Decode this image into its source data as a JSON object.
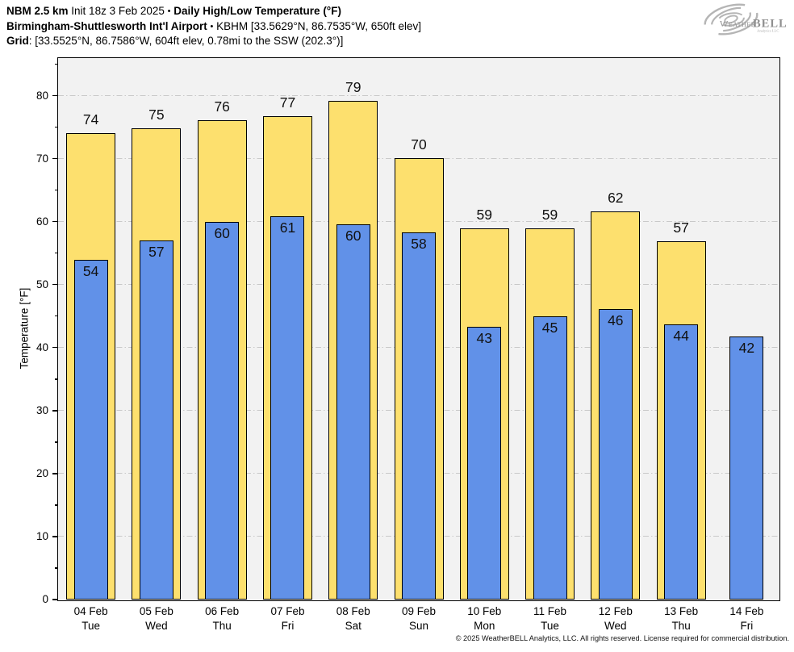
{
  "header": {
    "line1": {
      "model": "NBM 2.5 km",
      "init": "Init 18z 3 Feb 2025",
      "sep": "•",
      "title": "Daily High/Low Temperature (°F)"
    },
    "line2": {
      "station": "Birmingham-Shuttlesworth Int'l Airport",
      "sep": "•",
      "details": "KBHM [33.5629°N, 86.7535°W, 650ft elev]"
    },
    "line3": {
      "label": "Grid",
      "details": ": [33.5525°N, 86.7586°W, 604ft elev, 0.78mi to the SSW (202.3°)]"
    }
  },
  "logo": {
    "brand_weather": "Weather",
    "brand_bell": "BELL",
    "subtext": "Analytics LLC"
  },
  "footer": {
    "copyright": "© 2025 WeatherBELL Analytics, LLC. All rights reserved. License required for commercial distribution."
  },
  "colors": {
    "high_fill": "#FDE06E",
    "low_fill": "#6191E8",
    "bar_edge": "#000000",
    "plot_bg": "#F2F2F2",
    "gridline": "#C9C9C9",
    "logo_gray": "#9B9B9B"
  },
  "chart_data": {
    "type": "bar",
    "title": "Daily High/Low Temperature (°F)",
    "ylabel": "Temperature [°F]",
    "ylim": [
      0,
      86
    ],
    "yticks": [
      0,
      10,
      20,
      30,
      40,
      50,
      60,
      70,
      80
    ],
    "grid": "horizontal dash-dot, behind bars",
    "legend": "none",
    "categories": [
      {
        "date": "04 Feb",
        "day": "Tue"
      },
      {
        "date": "05 Feb",
        "day": "Wed"
      },
      {
        "date": "06 Feb",
        "day": "Thu"
      },
      {
        "date": "07 Feb",
        "day": "Fri"
      },
      {
        "date": "08 Feb",
        "day": "Sat"
      },
      {
        "date": "09 Feb",
        "day": "Sun"
      },
      {
        "date": "10 Feb",
        "day": "Mon"
      },
      {
        "date": "11 Feb",
        "day": "Tue"
      },
      {
        "date": "12 Feb",
        "day": "Wed"
      },
      {
        "date": "13 Feb",
        "day": "Thu"
      },
      {
        "date": "14 Feb",
        "day": "Fri"
      }
    ],
    "series": [
      {
        "name": "Daily High",
        "color": "#FDE06E",
        "values": [
          74.1,
          74.9,
          76.1,
          76.8,
          79.2,
          70.1,
          59.0,
          59.0,
          61.6,
          56.9,
          null
        ],
        "labels": [
          "74",
          "75",
          "76",
          "77",
          "79",
          "70",
          "59",
          "59",
          "62",
          "57",
          null
        ]
      },
      {
        "name": "Daily Low",
        "color": "#6191E8",
        "values": [
          54.0,
          57.0,
          60.0,
          60.9,
          59.6,
          58.3,
          43.3,
          45.0,
          46.1,
          43.7,
          41.8
        ],
        "labels": [
          "54",
          "57",
          "60",
          "61",
          "60",
          "58",
          "43",
          "45",
          "46",
          "44",
          "42"
        ]
      }
    ]
  }
}
